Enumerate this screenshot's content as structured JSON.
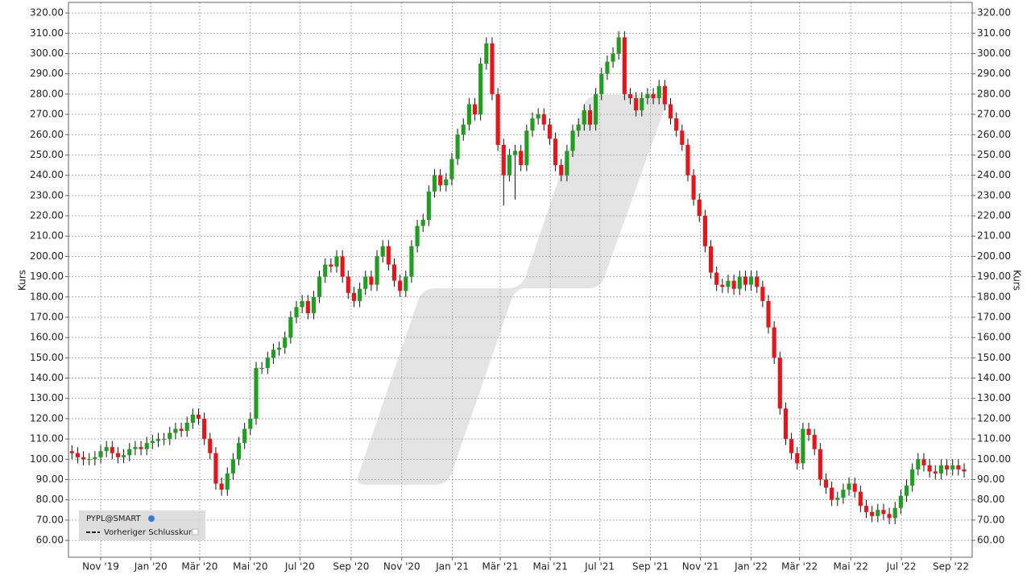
{
  "chart_data": {
    "type": "candlestick",
    "y_label": "Kurs",
    "legend": {
      "symbol": "PYPL@SMART",
      "reference": "Vorheriger Schlusskurs",
      "position": "bottom-left"
    },
    "up_color": "#1f9e1f",
    "down_color": "#e8141a",
    "grid": true,
    "ylim": [
      51.7,
      325.2
    ],
    "yticks": [
      {
        "value": 60,
        "label": "60.00"
      },
      {
        "value": 70,
        "label": "70.00"
      },
      {
        "value": 80,
        "label": "80.00"
      },
      {
        "value": 90,
        "label": "90.00"
      },
      {
        "value": 100,
        "label": "100.00"
      },
      {
        "value": 110,
        "label": "110.00"
      },
      {
        "value": 120,
        "label": "120.00"
      },
      {
        "value": 130,
        "label": "130.00"
      },
      {
        "value": 140,
        "label": "140.00"
      },
      {
        "value": 150,
        "label": "150.00"
      },
      {
        "value": 160,
        "label": "160.00"
      },
      {
        "value": 170,
        "label": "170.00"
      },
      {
        "value": 180,
        "label": "180.00"
      },
      {
        "value": 190,
        "label": "190.00"
      },
      {
        "value": 200,
        "label": "200.00"
      },
      {
        "value": 210,
        "label": "210.00"
      },
      {
        "value": 220,
        "label": "220.00"
      },
      {
        "value": 230,
        "label": "230.00"
      },
      {
        "value": 240,
        "label": "240.00"
      },
      {
        "value": 250,
        "label": "250.00"
      },
      {
        "value": 260,
        "label": "260.00"
      },
      {
        "value": 270,
        "label": "270.00"
      },
      {
        "value": 280,
        "label": "280.00"
      },
      {
        "value": 290,
        "label": "290.00"
      },
      {
        "value": 300,
        "label": "300.00"
      },
      {
        "value": 310,
        "label": "310.00"
      },
      {
        "value": 320,
        "label": "320.00"
      }
    ],
    "xlim": [
      -0.6,
      156.4
    ],
    "xticks": [
      {
        "value": 5.0,
        "label": "Nov '19"
      },
      {
        "value": 13.7,
        "label": "Jan '20"
      },
      {
        "value": 22.2,
        "label": "Mär '20"
      },
      {
        "value": 31.0,
        "label": "Mai '20"
      },
      {
        "value": 39.6,
        "label": "Jul '20"
      },
      {
        "value": 48.5,
        "label": "Sep '20"
      },
      {
        "value": 57.3,
        "label": "Nov '20"
      },
      {
        "value": 66.1,
        "label": "Jan '21"
      },
      {
        "value": 74.4,
        "label": "Mär '21"
      },
      {
        "value": 83.1,
        "label": "Mai '21"
      },
      {
        "value": 91.7,
        "label": "Jul '21"
      },
      {
        "value": 100.5,
        "label": "Sep '21"
      },
      {
        "value": 109.2,
        "label": "Nov '21"
      },
      {
        "value": 118.0,
        "label": "Jan '22"
      },
      {
        "value": 126.4,
        "label": "Mär '22"
      },
      {
        "value": 135.3,
        "label": "Mai '22"
      },
      {
        "value": 144.1,
        "label": "Jul '22"
      },
      {
        "value": 152.7,
        "label": "Sep '22"
      }
    ],
    "x": [
      0,
      1,
      2,
      3,
      4,
      5,
      6,
      7,
      8,
      9,
      10,
      11,
      12,
      13,
      14,
      15,
      16,
      17,
      18,
      19,
      20,
      21,
      22,
      23,
      24,
      25,
      26,
      27,
      28,
      29,
      30,
      31,
      32,
      33,
      34,
      35,
      36,
      37,
      38,
      39,
      40,
      41,
      42,
      43,
      44,
      45,
      46,
      47,
      48,
      49,
      50,
      51,
      52,
      53,
      54,
      55,
      56,
      57,
      58,
      59,
      60,
      61,
      62,
      63,
      64,
      65,
      66,
      67,
      68,
      69,
      70,
      71,
      72,
      73,
      74,
      75,
      76,
      77,
      78,
      79,
      80,
      81,
      82,
      83,
      84,
      85,
      86,
      87,
      88,
      89,
      90,
      91,
      92,
      93,
      94,
      95,
      96,
      97,
      98,
      99,
      100,
      101,
      102,
      103,
      104,
      105,
      106,
      107,
      108,
      109,
      110,
      111,
      112,
      113,
      114,
      115,
      116,
      117,
      118,
      119,
      120,
      121,
      122,
      123,
      124,
      125,
      126,
      127,
      128,
      129,
      130,
      131,
      132,
      133,
      134,
      135,
      136,
      137,
      138,
      139,
      140,
      141,
      142,
      143,
      144,
      145,
      146,
      147,
      148,
      149,
      150,
      151,
      152,
      153,
      154,
      155
    ],
    "open": [
      104,
      103,
      101,
      100,
      100,
      101,
      104,
      106,
      103,
      101,
      102,
      105,
      106,
      105,
      108,
      109,
      110,
      110,
      113,
      115,
      114,
      118,
      122,
      120,
      110,
      103,
      88,
      85,
      93,
      100,
      108,
      115,
      120,
      145,
      145,
      150,
      154,
      155,
      160,
      170,
      175,
      178,
      172,
      180,
      190,
      196,
      195,
      200,
      190,
      182,
      178,
      184,
      190,
      186,
      200,
      205,
      196,
      188,
      183,
      190,
      205,
      215,
      218,
      232,
      240,
      235,
      238,
      248,
      260,
      265,
      275,
      270,
      295,
      305,
      280,
      255,
      240,
      250,
      252,
      245,
      262,
      268,
      270,
      265,
      258,
      245,
      240,
      252,
      262,
      265,
      272,
      265,
      280,
      290,
      296,
      300,
      308,
      280,
      278,
      272,
      278,
      280,
      278,
      284,
      275,
      268,
      262,
      255,
      240,
      228,
      220,
      205,
      192,
      186,
      185,
      188,
      184,
      190,
      186,
      190,
      185,
      178,
      165,
      150,
      125,
      110,
      103,
      98,
      115,
      112,
      105,
      90,
      86,
      80,
      81,
      85,
      88,
      84,
      77,
      74,
      72,
      75,
      73,
      71,
      76,
      82,
      87,
      95,
      100,
      97,
      94,
      93,
      97,
      95,
      97,
      95
    ],
    "high": [
      107,
      106,
      104,
      103,
      104,
      107,
      109,
      109,
      106,
      105,
      108,
      109,
      109,
      111,
      112,
      113,
      113,
      116,
      118,
      118,
      121,
      125,
      125,
      123,
      113,
      106,
      91,
      96,
      103,
      111,
      118,
      123,
      148,
      148,
      153,
      157,
      158,
      163,
      173,
      178,
      181,
      181,
      183,
      193,
      199,
      199,
      203,
      203,
      193,
      185,
      187,
      193,
      193,
      203,
      208,
      208,
      199,
      191,
      193,
      208,
      218,
      221,
      235,
      243,
      243,
      241,
      251,
      263,
      268,
      278,
      278,
      298,
      308,
      308,
      283,
      258,
      253,
      255,
      255,
      265,
      271,
      273,
      273,
      268,
      261,
      248,
      255,
      265,
      268,
      275,
      275,
      283,
      293,
      299,
      303,
      311,
      311,
      283,
      281,
      281,
      283,
      283,
      287,
      287,
      278,
      271,
      265,
      258,
      243,
      231,
      223,
      208,
      195,
      189,
      191,
      191,
      193,
      193,
      193,
      193,
      188,
      181,
      168,
      153,
      128,
      113,
      106,
      118,
      118,
      115,
      108,
      93,
      89,
      84,
      88,
      91,
      91,
      87,
      80,
      77,
      78,
      78,
      76,
      79,
      85,
      90,
      98,
      103,
      103,
      100,
      97,
      100,
      100,
      100,
      100,
      98
    ],
    "low": [
      100,
      98,
      97,
      97,
      97,
      98,
      101,
      100,
      98,
      98,
      99,
      102,
      102,
      102,
      105,
      106,
      107,
      107,
      110,
      111,
      111,
      115,
      117,
      107,
      100,
      85,
      82,
      82,
      90,
      97,
      105,
      112,
      117,
      142,
      142,
      147,
      151,
      152,
      157,
      167,
      172,
      169,
      169,
      177,
      187,
      192,
      192,
      187,
      179,
      175,
      175,
      181,
      183,
      183,
      197,
      193,
      185,
      180,
      180,
      187,
      202,
      212,
      215,
      229,
      232,
      232,
      235,
      245,
      257,
      262,
      267,
      267,
      292,
      277,
      252,
      225,
      237,
      228,
      242,
      242,
      259,
      265,
      262,
      255,
      242,
      237,
      237,
      249,
      259,
      262,
      262,
      262,
      277,
      287,
      293,
      297,
      277,
      275,
      269,
      269,
      275,
      275,
      275,
      272,
      265,
      259,
      252,
      237,
      225,
      217,
      202,
      189,
      183,
      182,
      182,
      181,
      181,
      183,
      183,
      182,
      175,
      162,
      147,
      122,
      107,
      100,
      95,
      95,
      109,
      102,
      87,
      83,
      77,
      77,
      78,
      82,
      81,
      74,
      71,
      69,
      69,
      70,
      68,
      68,
      73,
      79,
      84,
      92,
      94,
      91,
      90,
      90,
      92,
      92,
      92,
      91
    ],
    "close": [
      103,
      101,
      100,
      100,
      101,
      104,
      106,
      103,
      101,
      102,
      105,
      106,
      105,
      108,
      109,
      110,
      110,
      113,
      115,
      114,
      118,
      122,
      120,
      110,
      103,
      88,
      85,
      93,
      100,
      108,
      115,
      120,
      145,
      145,
      150,
      154,
      155,
      160,
      170,
      175,
      178,
      172,
      180,
      190,
      196,
      195,
      200,
      190,
      182,
      178,
      184,
      190,
      186,
      200,
      205,
      196,
      188,
      183,
      190,
      205,
      215,
      218,
      232,
      240,
      235,
      238,
      248,
      260,
      265,
      275,
      270,
      295,
      305,
      280,
      255,
      240,
      250,
      252,
      245,
      262,
      268,
      270,
      265,
      258,
      245,
      240,
      252,
      262,
      265,
      272,
      265,
      280,
      290,
      296,
      300,
      308,
      280,
      278,
      272,
      278,
      280,
      278,
      284,
      275,
      268,
      262,
      255,
      240,
      228,
      220,
      205,
      192,
      186,
      185,
      188,
      184,
      190,
      186,
      190,
      185,
      178,
      165,
      150,
      125,
      110,
      103,
      98,
      115,
      112,
      105,
      90,
      86,
      80,
      81,
      85,
      88,
      84,
      77,
      74,
      72,
      75,
      73,
      71,
      76,
      82,
      87,
      95,
      100,
      97,
      94,
      93,
      97,
      95,
      97,
      95,
      94
    ]
  }
}
